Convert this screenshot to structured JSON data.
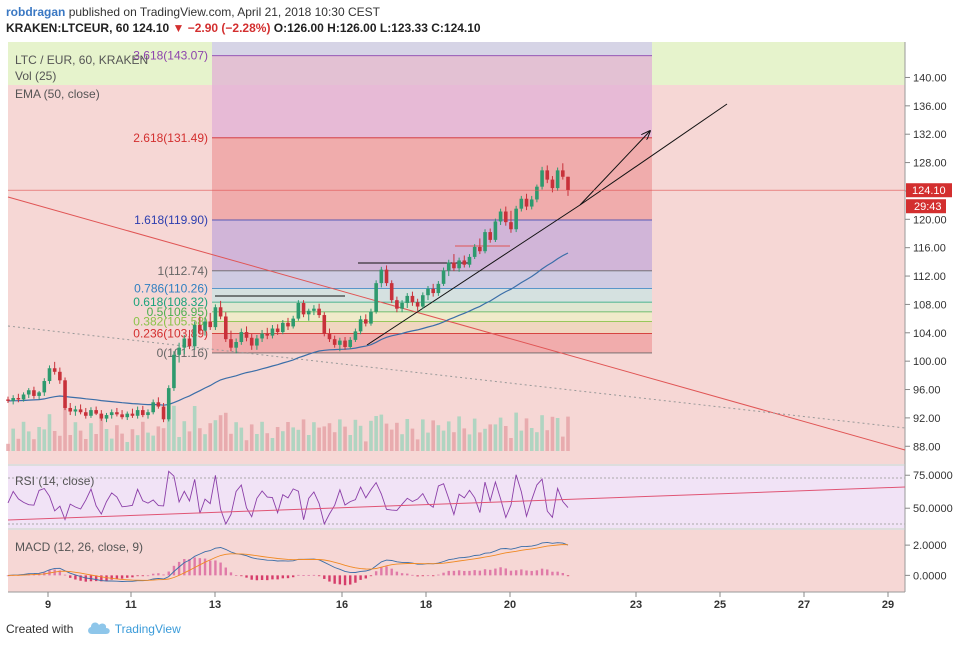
{
  "header": {
    "author": "robdragan",
    "published_text": "published on TradingView.com, April 21, 2018 10:30 CEST",
    "symbol": "KRAKEN:LTCEUR, 60",
    "last": "124.10",
    "change": "▼ −2.90 (−2.28%)",
    "ohlc": "O:126.00 H:126.00 L:123.33 C:124.10"
  },
  "footer": {
    "created_with": "Created with",
    "brand": "TradingView"
  },
  "colors": {
    "bg": "#f6d7d5",
    "green_zone": "#e6f3cc",
    "up": "#2e9a6e",
    "down": "#c8313a",
    "ema": "#3b6ea8",
    "rsi_bg": "#f1e3f6",
    "macd_bg": "#f6d7d5"
  },
  "chart_data": {
    "type": "candlestick",
    "main": {
      "legend": [
        "LTC / EUR, 60, KRAKEN",
        "Vol (25)",
        "EMA (50, close)"
      ],
      "ylim": [
        85.5,
        145
      ],
      "y_ticks": [
        88,
        92,
        96,
        100,
        104,
        108,
        112,
        116,
        120,
        124,
        128,
        132,
        136,
        140
      ],
      "y_tick_labels": [
        "88.00",
        "92.00",
        "96.00",
        "100.00",
        "104.00",
        "108.00",
        "112.00",
        "116.00",
        "120.00",
        "124.00",
        "128.00",
        "132.00",
        "136.00",
        "140.00"
      ],
      "last_price_label": "124.10",
      "countdown_label": "29:43",
      "fib_levels": [
        {
          "label": "3.618(143.07)",
          "value": 143.07,
          "color": "#8e44ad"
        },
        {
          "label": "2.618(131.49)",
          "value": 131.49,
          "color": "#d32f2f"
        },
        {
          "label": "1.618(119.90)",
          "value": 119.9,
          "color": "#2c3eaf"
        },
        {
          "label": "1(112.74)",
          "value": 112.74,
          "color": "#666666"
        },
        {
          "label": "0.786(110.26)",
          "value": 110.26,
          "color": "#2f7fc1"
        },
        {
          "label": "0.618(108.32)",
          "value": 108.32,
          "color": "#1aa37a"
        },
        {
          "label": "0.5(106.95)",
          "value": 106.95,
          "color": "#4caf50"
        },
        {
          "label": "0.382(105.58)",
          "value": 105.58,
          "color": "#8bc34a"
        },
        {
          "label": "0.236(103.89)",
          "value": 103.89,
          "color": "#d32f2f"
        },
        {
          "label": "0(101.16)",
          "value": 101.16,
          "color": "#666666"
        }
      ]
    },
    "rsi": {
      "legend": "RSI (14, close)",
      "y_ticks": [
        50,
        75
      ],
      "y_tick_labels": [
        "50.0000",
        "75.0000"
      ]
    },
    "macd": {
      "legend": "MACD (12, 26, close, 9)",
      "y_ticks": [
        0,
        2
      ],
      "y_tick_labels": [
        "0.0000",
        "2.0000"
      ]
    },
    "x_axis": {
      "ticks": [
        9,
        11,
        13,
        16,
        18,
        20,
        23,
        25,
        27,
        29
      ],
      "tick_labels": [
        "9",
        "11",
        "13",
        "16",
        "18",
        "20",
        "23",
        "25",
        "27",
        "29"
      ]
    },
    "candles_ohlc": [
      [
        94.6,
        95.0,
        94.1,
        94.4
      ],
      [
        94.4,
        95.2,
        93.9,
        94.8
      ],
      [
        94.8,
        95.4,
        94.2,
        94.6
      ],
      [
        94.6,
        95.6,
        94.3,
        95.3
      ],
      [
        95.3,
        96.2,
        94.8,
        95.9
      ],
      [
        95.9,
        96.4,
        94.7,
        95.1
      ],
      [
        95.1,
        95.8,
        94.6,
        95.6
      ],
      [
        95.6,
        97.6,
        95.1,
        97.2
      ],
      [
        97.2,
        99.4,
        96.8,
        99.0
      ],
      [
        99.0,
        99.9,
        98.1,
        98.5
      ],
      [
        98.5,
        99.1,
        96.8,
        97.3
      ],
      [
        97.3,
        97.7,
        93.1,
        93.4
      ],
      [
        93.4,
        94.1,
        92.4,
        92.9
      ],
      [
        92.9,
        93.7,
        92.3,
        93.2
      ],
      [
        93.2,
        93.9,
        92.5,
        92.8
      ],
      [
        92.8,
        93.4,
        91.9,
        92.3
      ],
      [
        92.3,
        93.5,
        92.0,
        93.1
      ],
      [
        93.1,
        93.6,
        92.4,
        92.6
      ],
      [
        92.6,
        93.1,
        91.6,
        91.9
      ],
      [
        91.9,
        92.7,
        91.4,
        92.4
      ],
      [
        92.4,
        93.2,
        91.9,
        92.8
      ],
      [
        92.8,
        93.4,
        92.2,
        92.5
      ],
      [
        92.5,
        93.1,
        91.8,
        92.1
      ],
      [
        92.1,
        92.9,
        91.7,
        92.6
      ],
      [
        92.6,
        93.3,
        92.0,
        92.3
      ],
      [
        92.3,
        93.6,
        91.9,
        93.1
      ],
      [
        93.1,
        93.7,
        92.1,
        92.4
      ],
      [
        92.4,
        93.2,
        91.9,
        92.8
      ],
      [
        92.8,
        94.6,
        92.5,
        94.2
      ],
      [
        94.2,
        94.9,
        93.3,
        93.6
      ],
      [
        93.6,
        94.1,
        91.4,
        91.8
      ],
      [
        91.8,
        96.6,
        91.5,
        96.2
      ],
      [
        96.2,
        101.4,
        95.8,
        100.9
      ],
      [
        100.9,
        102.6,
        99.8,
        101.9
      ],
      [
        101.9,
        103.7,
        101.0,
        103.2
      ],
      [
        103.2,
        104.4,
        101.7,
        102.1
      ],
      [
        102.1,
        105.6,
        101.6,
        105.1
      ],
      [
        105.1,
        106.3,
        103.9,
        104.3
      ],
      [
        104.3,
        106.1,
        103.6,
        105.6
      ],
      [
        105.6,
        106.8,
        104.4,
        104.8
      ],
      [
        104.8,
        108.0,
        104.4,
        107.6
      ],
      [
        107.6,
        108.5,
        105.9,
        106.3
      ],
      [
        106.3,
        106.9,
        102.7,
        103.1
      ],
      [
        103.1,
        104.3,
        101.4,
        101.9
      ],
      [
        101.9,
        103.2,
        101.1,
        102.7
      ],
      [
        102.7,
        104.6,
        102.3,
        104.1
      ],
      [
        104.1,
        104.9,
        102.8,
        103.3
      ],
      [
        103.3,
        103.9,
        101.6,
        102.2
      ],
      [
        102.2,
        103.7,
        101.6,
        103.2
      ],
      [
        103.2,
        104.4,
        102.7,
        103.9
      ],
      [
        103.9,
        104.7,
        103.1,
        103.6
      ],
      [
        103.6,
        105.1,
        103.2,
        104.6
      ],
      [
        104.6,
        105.2,
        103.7,
        104.1
      ],
      [
        104.1,
        105.8,
        103.8,
        105.4
      ],
      [
        105.4,
        106.1,
        104.4,
        104.9
      ],
      [
        104.9,
        106.4,
        104.6,
        106.0
      ],
      [
        106.0,
        108.6,
        105.7,
        108.2
      ],
      [
        108.2,
        108.6,
        106.2,
        106.6
      ],
      [
        106.6,
        107.4,
        105.7,
        107.1
      ],
      [
        107.1,
        107.9,
        106.5,
        107.4
      ],
      [
        107.4,
        108.1,
        106.1,
        106.5
      ],
      [
        106.5,
        106.9,
        103.5,
        103.9
      ],
      [
        103.9,
        104.6,
        102.7,
        103.1
      ],
      [
        103.1,
        103.6,
        101.9,
        102.3
      ],
      [
        102.3,
        103.3,
        101.4,
        102.9
      ],
      [
        102.9,
        103.4,
        101.6,
        102.0
      ],
      [
        102.0,
        103.4,
        101.7,
        103.0
      ],
      [
        103.0,
        104.6,
        102.7,
        104.2
      ],
      [
        104.2,
        106.4,
        103.8,
        105.9
      ],
      [
        105.9,
        106.6,
        104.9,
        105.3
      ],
      [
        105.3,
        107.4,
        105.0,
        107.0
      ],
      [
        107.0,
        111.4,
        106.7,
        111.0
      ],
      [
        111.0,
        113.3,
        110.4,
        112.9
      ],
      [
        112.9,
        113.5,
        110.6,
        111.0
      ],
      [
        111.0,
        111.4,
        108.2,
        108.6
      ],
      [
        108.6,
        109.1,
        106.9,
        107.4
      ],
      [
        107.4,
        108.6,
        106.9,
        108.2
      ],
      [
        108.2,
        109.6,
        107.5,
        109.2
      ],
      [
        109.2,
        109.8,
        107.8,
        108.3
      ],
      [
        108.3,
        108.8,
        107.1,
        107.7
      ],
      [
        107.7,
        109.7,
        107.4,
        109.3
      ],
      [
        109.3,
        110.6,
        108.6,
        110.2
      ],
      [
        110.2,
        110.9,
        109.1,
        109.6
      ],
      [
        109.6,
        111.3,
        109.2,
        110.9
      ],
      [
        110.9,
        113.2,
        110.6,
        112.8
      ],
      [
        112.8,
        114.3,
        112.0,
        113.9
      ],
      [
        113.9,
        115.1,
        112.7,
        113.1
      ],
      [
        113.1,
        114.6,
        112.6,
        114.2
      ],
      [
        114.2,
        114.9,
        113.2,
        113.6
      ],
      [
        113.6,
        115.1,
        113.2,
        114.7
      ],
      [
        114.7,
        116.5,
        114.4,
        116.1
      ],
      [
        116.1,
        117.3,
        115.1,
        115.5
      ],
      [
        115.5,
        118.6,
        115.2,
        118.2
      ],
      [
        118.2,
        118.7,
        116.7,
        117.1
      ],
      [
        117.1,
        120.1,
        116.8,
        119.7
      ],
      [
        119.7,
        121.5,
        119.2,
        121.1
      ],
      [
        121.1,
        121.8,
        119.1,
        119.6
      ],
      [
        119.6,
        121.2,
        118.1,
        118.6
      ],
      [
        118.6,
        121.9,
        118.2,
        121.5
      ],
      [
        121.5,
        123.3,
        121.1,
        122.9
      ],
      [
        122.9,
        123.6,
        121.3,
        121.8
      ],
      [
        121.8,
        123.3,
        121.4,
        122.8
      ],
      [
        122.8,
        124.9,
        122.4,
        124.6
      ],
      [
        124.6,
        127.4,
        124.2,
        126.9
      ],
      [
        126.9,
        127.6,
        125.1,
        125.6
      ],
      [
        125.6,
        126.1,
        123.8,
        124.4
      ],
      [
        124.4,
        127.3,
        124.0,
        126.9
      ],
      [
        126.9,
        127.9,
        125.6,
        126.0
      ],
      [
        126.0,
        126.0,
        123.3,
        124.1
      ]
    ]
  }
}
